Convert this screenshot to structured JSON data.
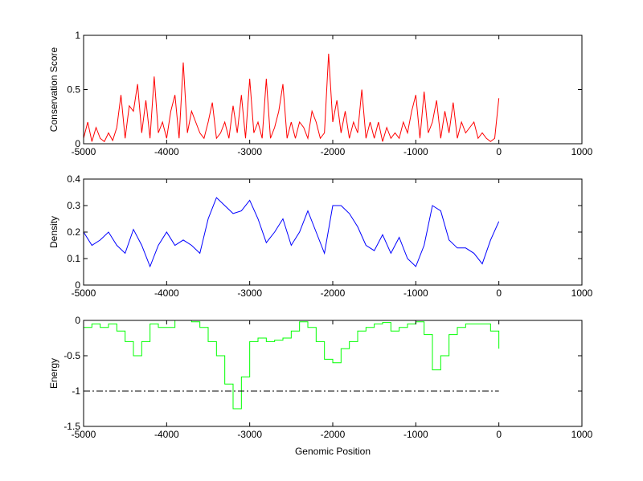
{
  "chart_data": [
    {
      "type": "line",
      "title": "",
      "xlabel": "",
      "ylabel": "Conservation Score",
      "xlim": [
        -5000,
        1000
      ],
      "ylim": [
        0,
        1
      ],
      "xticks": [
        "-5000",
        "-4000",
        "-3000",
        "-2000",
        "-1000",
        "0",
        "1000"
      ],
      "yticks": [
        "0",
        "0.5",
        "1"
      ],
      "ytickvals": [
        0,
        0.5,
        1
      ],
      "color": "#ff0000",
      "series": [
        {
          "name": "conservation",
          "x_start": -5000,
          "x_step": 50,
          "values": [
            0.05,
            0.2,
            0.02,
            0.15,
            0.05,
            0.02,
            0.1,
            0.03,
            0.15,
            0.45,
            0.05,
            0.35,
            0.3,
            0.55,
            0.1,
            0.4,
            0.05,
            0.62,
            0.1,
            0.2,
            0.05,
            0.3,
            0.45,
            0.05,
            0.75,
            0.1,
            0.3,
            0.2,
            0.1,
            0.05,
            0.2,
            0.38,
            0.05,
            0.1,
            0.2,
            0.05,
            0.35,
            0.1,
            0.45,
            0.05,
            0.6,
            0.1,
            0.2,
            0.05,
            0.6,
            0.05,
            0.15,
            0.3,
            0.55,
            0.05,
            0.2,
            0.05,
            0.2,
            0.15,
            0.05,
            0.3,
            0.2,
            0.05,
            0.1,
            0.83,
            0.2,
            0.4,
            0.1,
            0.3,
            0.05,
            0.2,
            0.1,
            0.5,
            0.05,
            0.2,
            0.05,
            0.2,
            0.02,
            0.15,
            0.05,
            0.1,
            0.05,
            0.2,
            0.1,
            0.3,
            0.45,
            0.05,
            0.48,
            0.1,
            0.2,
            0.4,
            0.05,
            0.3,
            0.1,
            0.38,
            0.05,
            0.2,
            0.1,
            0.15,
            0.2,
            0.05,
            0.1,
            0.05,
            0.02,
            0.05,
            0.42
          ]
        }
      ]
    },
    {
      "type": "line",
      "title": "",
      "xlabel": "",
      "ylabel": "Density",
      "xlim": [
        -5000,
        1000
      ],
      "ylim": [
        0,
        0.4
      ],
      "xticks": [
        "-5000",
        "-4000",
        "-3000",
        "-2000",
        "-1000",
        "0",
        "1000"
      ],
      "yticks": [
        "0",
        "0.1",
        "0.2",
        "0.3",
        "0.4"
      ],
      "ytickvals": [
        0,
        0.1,
        0.2,
        0.3,
        0.4
      ],
      "color": "#0000ff",
      "series": [
        {
          "name": "density",
          "x_start": -5000,
          "x_step": 100,
          "values": [
            0.2,
            0.15,
            0.17,
            0.2,
            0.15,
            0.12,
            0.21,
            0.15,
            0.07,
            0.15,
            0.2,
            0.15,
            0.17,
            0.15,
            0.12,
            0.25,
            0.33,
            0.3,
            0.27,
            0.28,
            0.32,
            0.25,
            0.16,
            0.2,
            0.25,
            0.15,
            0.2,
            0.28,
            0.2,
            0.12,
            0.3,
            0.3,
            0.27,
            0.22,
            0.15,
            0.13,
            0.19,
            0.12,
            0.18,
            0.1,
            0.07,
            0.15,
            0.3,
            0.28,
            0.17,
            0.14,
            0.14,
            0.12,
            0.08,
            0.17,
            0.24
          ]
        }
      ]
    },
    {
      "type": "line",
      "title": "",
      "xlabel": "Genomic Position",
      "ylabel": "Energy",
      "xlim": [
        -5000,
        1000
      ],
      "ylim": [
        -1.5,
        0
      ],
      "xticks": [
        "-5000",
        "-4000",
        "-3000",
        "-2000",
        "-1000",
        "0",
        "1000"
      ],
      "yticks": [
        "-1.5",
        "-1",
        "-0.5",
        "0"
      ],
      "ytickvals": [
        -1.5,
        -1,
        -0.5,
        0
      ],
      "color": "#00ff00",
      "threshold": -1,
      "series": [
        {
          "name": "energy",
          "x_start": -5000,
          "x_step": 100,
          "values": [
            -0.1,
            -0.05,
            -0.1,
            -0.05,
            -0.15,
            -0.3,
            -0.5,
            -0.3,
            -0.05,
            -0.1,
            -0.1,
            0,
            0,
            -0.02,
            -0.1,
            -0.3,
            -0.5,
            -0.9,
            -1.25,
            -0.8,
            -0.3,
            -0.25,
            -0.3,
            -0.28,
            -0.25,
            -0.15,
            -0.02,
            -0.1,
            -0.3,
            -0.55,
            -0.6,
            -0.4,
            -0.3,
            -0.15,
            -0.1,
            -0.05,
            -0.03,
            -0.15,
            -0.1,
            -0.05,
            -0.02,
            -0.2,
            -0.7,
            -0.5,
            -0.2,
            -0.1,
            -0.05,
            -0.05,
            -0.05,
            -0.15,
            -0.4
          ]
        }
      ]
    }
  ]
}
